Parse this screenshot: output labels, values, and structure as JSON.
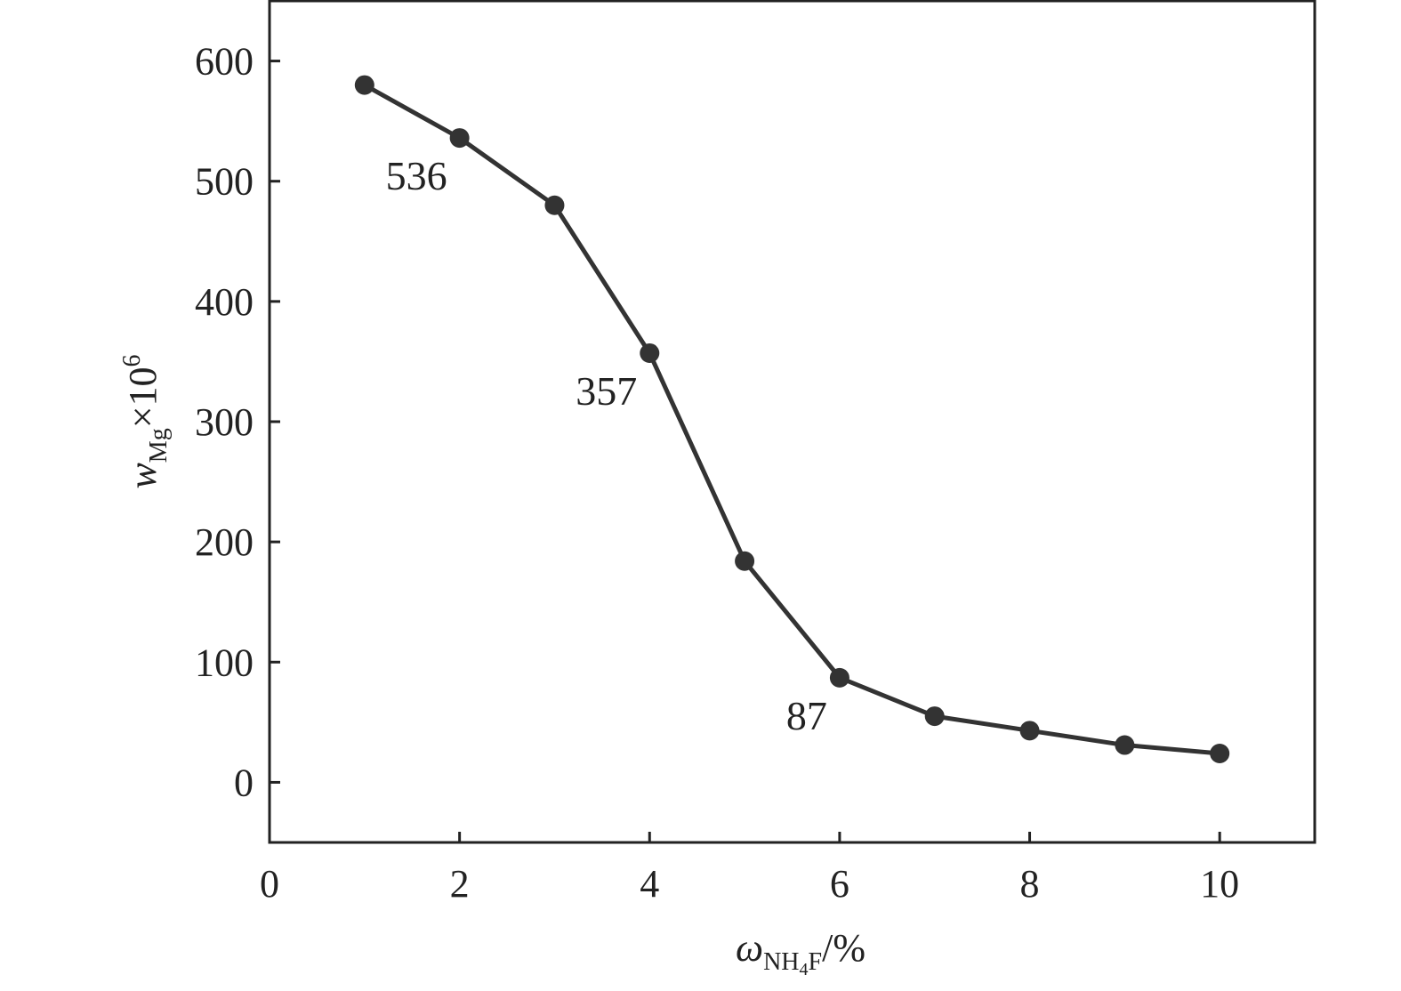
{
  "chart_data": {
    "type": "line",
    "title": "",
    "xlabel": {
      "symbol": "ω",
      "subscript": "NH",
      "subscript_sub": "4",
      "subscript_tail": "F",
      "unit": "/%"
    },
    "ylabel": {
      "symbol": "w",
      "subscript": "Mg",
      "factor": "×10",
      "exponent": "6"
    },
    "xlim": [
      0,
      11
    ],
    "ylim": [
      -50,
      650
    ],
    "xticks": [
      0,
      2,
      4,
      6,
      8,
      10
    ],
    "yticks": [
      0,
      100,
      200,
      300,
      400,
      500,
      600
    ],
    "grid": false,
    "legend": "none",
    "color": "#333333",
    "x": [
      1,
      2,
      3,
      4,
      5,
      6,
      7,
      8,
      9,
      10
    ],
    "y": [
      580,
      536,
      480,
      357,
      184,
      87,
      55,
      43,
      31,
      24
    ],
    "annotations": [
      {
        "x": 2,
        "y": 536,
        "text": "536"
      },
      {
        "x": 4,
        "y": 357,
        "text": "357"
      },
      {
        "x": 6,
        "y": 87,
        "text": "87"
      }
    ]
  }
}
